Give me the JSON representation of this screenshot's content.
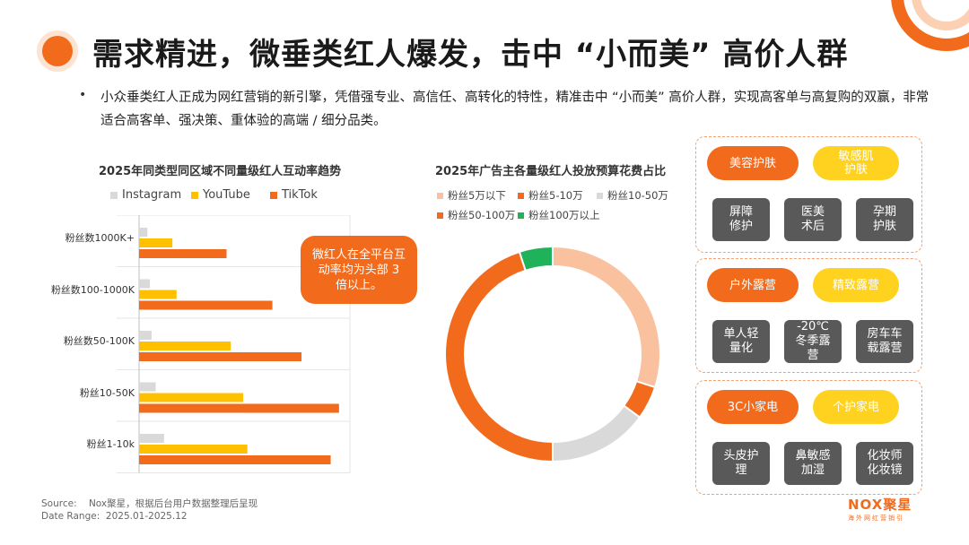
{
  "title": "需求精进，微垂类红人爆发，击中 “小而美” 高价人群",
  "intro": "小众垂类红人正成为网红营销的新引擎，凭借强专业、高信任、高转化的特性，精准击中 “小而美” 高价人群，实现高客单与高复购的双赢，非常适合高客单、强决策、重体验的高端 / 细分品类。",
  "bullet": "•",
  "colors": {
    "accent": "#f26b1d",
    "yellow": "#ffd21f",
    "gray_bar": "#d9d9d9",
    "tag_gray": "#595959"
  },
  "chart_data": [
    {
      "type": "bar",
      "orientation": "horizontal",
      "title": "2025年同类型同区域不同量级红人互动率趋势",
      "categories": [
        "粉丝数1000K+",
        "粉丝数100-1000K",
        "粉丝数50-100K",
        "粉丝10-50K",
        "粉丝1-10k"
      ],
      "series": [
        {
          "name": "Instagram",
          "color": "#d9d9d9",
          "values": [
            1.0,
            1.3,
            1.5,
            2.0,
            3.0
          ]
        },
        {
          "name": "YouTube",
          "color": "#ffc000",
          "values": [
            4.0,
            4.5,
            11.0,
            12.5,
            13.0
          ]
        },
        {
          "name": "TikTok",
          "color": "#f26b1d",
          "values": [
            10.5,
            16.0,
            19.5,
            24.0,
            23.0
          ]
        }
      ],
      "xlim": [
        0,
        28
      ],
      "legend": "top-left",
      "grid": true,
      "annotation": "微红人在全平台互动率均为头部 3 倍以上。"
    },
    {
      "type": "pie",
      "donut": true,
      "title": "2025年广告主各量级红人投放预算花费占比",
      "labels": [
        "粉丝5万以下",
        "粉丝5-10万",
        "粉丝10-50万",
        "粉丝50-100万",
        "粉丝100万以上"
      ],
      "colors": [
        "#f9c19d",
        "#f26b1d",
        "#d9d9d9",
        "#f26b1d",
        "#1fb25a"
      ],
      "values": [
        30,
        5,
        15,
        45,
        5
      ],
      "legend": "top"
    }
  ],
  "groups": [
    {
      "primary": "美容护肤",
      "secondary": "敏感肌\n护肤",
      "tags": [
        "屏障\n修护",
        "医美\n术后",
        "孕期\n护肤"
      ]
    },
    {
      "primary": "户外露营",
      "secondary": "精致露营",
      "tags": [
        "单人轻\n量化",
        "-20℃\n冬季露\n营",
        "房车车\n载露营"
      ]
    },
    {
      "primary": "3C小家电",
      "secondary": "个护家电",
      "tags": [
        "头皮护\n理",
        "鼻敏感\n加湿",
        "化妆师\n化妆镜"
      ]
    }
  ],
  "source": {
    "line1": "Source:    Nox聚星，根据后台用户数据整理后呈现",
    "line2": "Date Range:  2025.01-2025.12"
  },
  "logo": {
    "main": "NOX聚星",
    "sub": "海外网红营销引"
  }
}
